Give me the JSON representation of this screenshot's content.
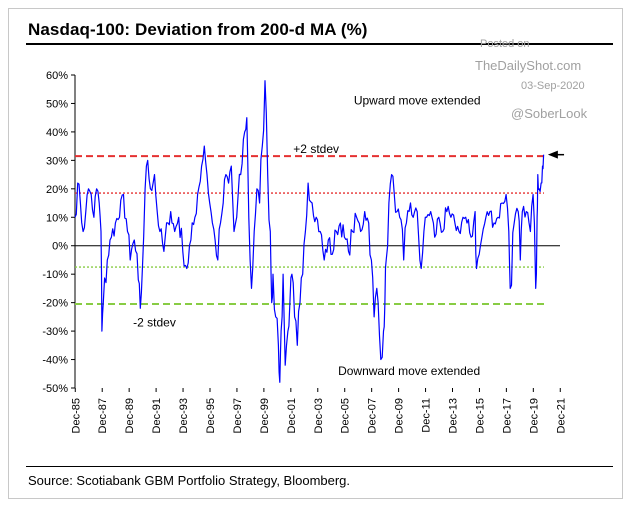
{
  "title": "Nasdaq-100: Deviation from 200-d MA (%)",
  "source": "Source: Scotiabank GBM Portfolio Strategy, Bloomberg.",
  "watermark": {
    "posted_on": "Posted on",
    "site": "TheDailyShot.com",
    "date": "03-Sep-2020",
    "handle": "@SoberLook"
  },
  "chart_data": {
    "type": "line",
    "title": "Nasdaq-100: Deviation from 200-d MA (%)",
    "xlabel": "",
    "ylabel": "",
    "ylim": [
      -50,
      60
    ],
    "xlim": [
      1985.9,
      2021.9
    ],
    "y_ticks": [
      60,
      50,
      40,
      30,
      20,
      10,
      0,
      -10,
      -20,
      -30,
      -40,
      -50
    ],
    "y_tick_labels": [
      "60%",
      "50%",
      "40%",
      "30%",
      "20%",
      "10%",
      "0%",
      "-10%",
      "-20%",
      "-30%",
      "-40%",
      "-50%"
    ],
    "x_ticks": [
      1985.92,
      1987.92,
      1989.92,
      1991.92,
      1993.92,
      1995.92,
      1997.92,
      1999.92,
      2001.92,
      2003.92,
      2005.92,
      2007.92,
      2009.92,
      2011.92,
      2013.92,
      2015.92,
      2017.92,
      2019.92,
      2021.92
    ],
    "x_tick_labels": [
      "Dec-85",
      "Dec-87",
      "Dec-89",
      "Dec-91",
      "Dec-93",
      "Dec-95",
      "Dec-97",
      "Dec-99",
      "Dec-01",
      "Dec-03",
      "Dec-05",
      "Dec-07",
      "Dec-09",
      "Dec-11",
      "Dec-13",
      "Dec-15",
      "Dec-17",
      "Dec-19",
      "Dec-21"
    ],
    "grid": false,
    "series": [
      {
        "name": "",
        "color": "#0000ff",
        "x": [
          1985.9,
          1986.1,
          1986.3,
          1986.5,
          1986.7,
          1986.9,
          1987.1,
          1987.3,
          1987.5,
          1987.7,
          1987.83,
          1987.9,
          1988.0,
          1988.3,
          1988.6,
          1988.9,
          1989.2,
          1989.5,
          1989.8,
          1990.0,
          1990.3,
          1990.6,
          1990.75,
          1990.9,
          1991.1,
          1991.3,
          1991.5,
          1991.8,
          1992.0,
          1992.2,
          1992.5,
          1992.8,
          1993.0,
          1993.3,
          1993.6,
          1993.9,
          1994.2,
          1994.5,
          1994.8,
          1995.0,
          1995.3,
          1995.5,
          1995.7,
          1995.9,
          1996.1,
          1996.3,
          1996.5,
          1996.7,
          1996.9,
          1997.1,
          1997.3,
          1997.5,
          1997.7,
          1997.9,
          1998.2,
          1998.5,
          1998.65,
          1998.8,
          1999.0,
          1999.2,
          1999.4,
          1999.6,
          1999.8,
          2000.0,
          2000.2,
          2000.4,
          2000.5,
          2000.6,
          2000.8,
          2001.0,
          2001.1,
          2001.2,
          2001.35,
          2001.5,
          2001.7,
          2001.85,
          2002.0,
          2002.2,
          2002.4,
          2002.6,
          2002.8,
          2003.0,
          2003.2,
          2003.5,
          2003.8,
          2004.1,
          2004.4,
          2004.7,
          2005.0,
          2005.3,
          2005.6,
          2005.9,
          2006.2,
          2006.5,
          2006.8,
          2007.1,
          2007.4,
          2007.7,
          2007.9,
          2008.1,
          2008.3,
          2008.6,
          2008.8,
          2008.9,
          2009.0,
          2009.2,
          2009.4,
          2009.6,
          2009.8,
          2010.0,
          2010.3,
          2010.5,
          2010.8,
          2011.0,
          2011.3,
          2011.6,
          2011.8,
          2012.0,
          2012.3,
          2012.6,
          2012.9,
          2013.2,
          2013.5,
          2013.8,
          2014.1,
          2014.4,
          2014.7,
          2015.0,
          2015.3,
          2015.6,
          2015.7,
          2015.9,
          2016.1,
          2016.4,
          2016.7,
          2017.0,
          2017.3,
          2017.6,
          2017.9,
          2018.1,
          2018.2,
          2018.5,
          2018.8,
          2018.95,
          2019.1,
          2019.4,
          2019.7,
          2019.9,
          2020.1,
          2020.2,
          2020.25,
          2020.35,
          2020.5,
          2020.6,
          2020.68
        ],
        "y": [
          10,
          22,
          15,
          5,
          12,
          20,
          18,
          10,
          20,
          15,
          5,
          -30,
          -20,
          -5,
          3,
          8,
          10,
          18,
          5,
          -5,
          2,
          -12,
          -22,
          -8,
          20,
          30,
          20,
          25,
          12,
          5,
          -2,
          8,
          12,
          5,
          10,
          -2,
          -8,
          2,
          10,
          18,
          28,
          35,
          25,
          15,
          8,
          2,
          -5,
          8,
          15,
          25,
          22,
          28,
          5,
          10,
          25,
          40,
          45,
          10,
          -15,
          5,
          20,
          15,
          35,
          58,
          25,
          5,
          -20,
          -10,
          -25,
          -35,
          -48,
          -30,
          -10,
          -42,
          -30,
          -20,
          -10,
          -25,
          -35,
          -20,
          -10,
          5,
          22,
          15,
          10,
          5,
          -5,
          2,
          -3,
          5,
          8,
          3,
          -2,
          5,
          10,
          5,
          12,
          8,
          -5,
          -25,
          -15,
          -40,
          -30,
          -20,
          -5,
          15,
          25,
          18,
          12,
          10,
          -5,
          8,
          15,
          10,
          12,
          -8,
          5,
          10,
          12,
          3,
          10,
          5,
          12,
          10,
          8,
          5,
          10,
          8,
          3,
          12,
          -8,
          -3,
          3,
          10,
          12,
          8,
          10,
          15,
          18,
          5,
          -15,
          8,
          12,
          -5,
          12,
          12,
          5,
          18,
          -15,
          10,
          25,
          20,
          22,
          28,
          32
        ],
        "labeled": false
      }
    ],
    "reference_lines": [
      {
        "y": 31.5,
        "style": "dashed",
        "color": "#e53131",
        "label": "+2 stdev"
      },
      {
        "y": 18.5,
        "style": "dotted",
        "color": "#e53131",
        "label": ""
      },
      {
        "y": -7.5,
        "style": "dotted",
        "color": "#88cc44",
        "label": ""
      },
      {
        "y": -20.5,
        "style": "dashed",
        "color": "#88cc44",
        "label": "-2 stdev"
      }
    ],
    "annotations": [
      {
        "text": "Upward move extended",
        "x": 2011.3,
        "y": 51
      },
      {
        "text": "+2 stdev",
        "x": 2003.8,
        "y": 34
      },
      {
        "text": "-2 stdev",
        "x": 1991.8,
        "y": -27
      },
      {
        "text": "Downward move extended",
        "x": 2010.7,
        "y": -44
      }
    ],
    "arrow": {
      "x_from": 2022.2,
      "x_to": 2021.0,
      "y": 32,
      "color": "#000000"
    }
  }
}
